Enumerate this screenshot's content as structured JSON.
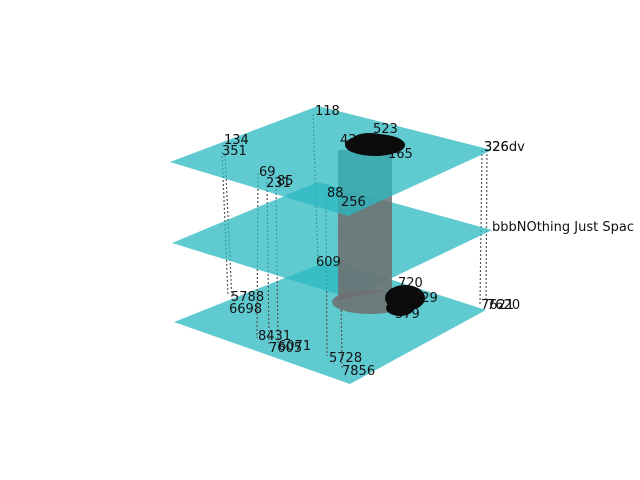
{
  "diagram": {
    "colors": {
      "plane": "#2bb8c1",
      "connector": "#555555",
      "label": "#111111",
      "cluster": "#0b0b0b",
      "tube": "#6f6f6f"
    },
    "layer_labels": {
      "top": "326dv",
      "middle": "bbbNOthing Just Spac",
      "bottom": "7621"
    },
    "top_labels": {
      "l118": "118",
      "l134": "134",
      "l351": "351",
      "l69": "69",
      "l231": "231",
      "l85": "85",
      "l88": "88",
      "l256": "256",
      "l523": "523",
      "l_cluster": "4386",
      "l165": "165",
      "l326": "326"
    },
    "middle_labels": {
      "l609": "609"
    },
    "bottom_labels": {
      "l5788": "5788",
      "l6698": "6698",
      "l8431": "8431",
      "l6071": "6071",
      "l7605": "7605",
      "l5728": "5728",
      "l7856": "7856",
      "l720": "720",
      "l729": "729",
      "l579": "579",
      "l7620": "7620"
    }
  }
}
